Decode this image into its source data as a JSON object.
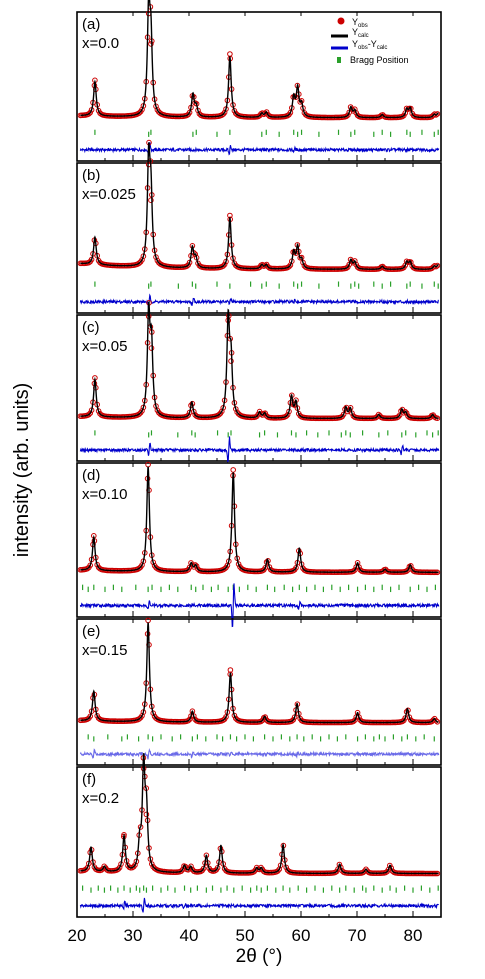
{
  "figure": {
    "ylabel": "intensity (arb. units)",
    "xlabel": "2θ (°)",
    "xlim": [
      20,
      85
    ],
    "xticks": [
      20,
      30,
      40,
      50,
      60,
      70,
      80
    ],
    "legend": {
      "items": [
        {
          "label": "Y",
          "sub": "obs"
        },
        {
          "label": "Y",
          "sub": "calc"
        },
        {
          "label": "Y",
          "sub": "obs",
          "mid": "-Y",
          "sub2": "calc"
        },
        {
          "label": "Bragg Position",
          "sub": ""
        }
      ],
      "placement": "top-right of panel (a)"
    },
    "colors": {
      "obs": "#cc0000",
      "calc": "#000000",
      "diff": "#0000cc",
      "diff_e": "#6a6ae8",
      "bragg": "#2aa02a"
    }
  },
  "chart_data": [
    {
      "type": "line",
      "panel": "(a)",
      "composition": "x=0.0",
      "peaks": [
        [
          23.2,
          0.34
        ],
        [
          32.8,
          1.0
        ],
        [
          33.2,
          0.7
        ],
        [
          40.7,
          0.22
        ],
        [
          41.3,
          0.1
        ],
        [
          47.3,
          0.6
        ],
        [
          53.0,
          0.04
        ],
        [
          53.8,
          0.05
        ],
        [
          58.7,
          0.19
        ],
        [
          59.4,
          0.28
        ],
        [
          60.1,
          0.12
        ],
        [
          68.9,
          0.1
        ],
        [
          69.6,
          0.07
        ],
        [
          74.5,
          0.03
        ],
        [
          78.9,
          0.08
        ],
        [
          79.5,
          0.09
        ],
        [
          83.8,
          0.03
        ],
        [
          84.5,
          0.04
        ]
      ],
      "baseline": 0.02,
      "noise_diff": 0.02,
      "diff_features": [
        [
          32.9,
          0.1
        ],
        [
          47.3,
          0.07
        ],
        [
          58.8,
          0.02
        ]
      ],
      "bragg": [
        23.2,
        32.8,
        33.2,
        40.7,
        41.3,
        45.0,
        47.3,
        53.0,
        53.8,
        56.1,
        58.7,
        59.4,
        60.1,
        63.2,
        66.7,
        68.9,
        69.6,
        73.0,
        74.5,
        76.0,
        78.9,
        79.5,
        81.6,
        83.8,
        84.5
      ]
    },
    {
      "type": "line",
      "panel": "(b)",
      "composition": "x=0.025",
      "peaks": [
        [
          23.2,
          0.27
        ],
        [
          32.8,
          1.0
        ],
        [
          33.2,
          0.65
        ],
        [
          40.6,
          0.2
        ],
        [
          41.2,
          0.1
        ],
        [
          47.3,
          0.5
        ],
        [
          53.0,
          0.04
        ],
        [
          53.8,
          0.04
        ],
        [
          58.7,
          0.16
        ],
        [
          59.4,
          0.21
        ],
        [
          60.1,
          0.08
        ],
        [
          68.9,
          0.09
        ],
        [
          69.6,
          0.07
        ],
        [
          74.5,
          0.03
        ],
        [
          78.9,
          0.07
        ],
        [
          79.5,
          0.07
        ],
        [
          83.8,
          0.03
        ],
        [
          84.5,
          0.04
        ]
      ],
      "baseline": 0.06,
      "noise_diff": 0.02,
      "diff_features": [
        [
          32.9,
          0.09
        ],
        [
          40.7,
          0.05
        ],
        [
          47.3,
          0.03
        ],
        [
          58.8,
          0.03
        ]
      ],
      "bragg": [
        23.2,
        32.8,
        33.2,
        38.1,
        40.6,
        41.2,
        45.0,
        47.3,
        51.0,
        53.0,
        53.8,
        56.1,
        58.7,
        59.4,
        60.1,
        63.2,
        66.7,
        68.9,
        69.6,
        70.3,
        73.0,
        74.5,
        76.0,
        78.9,
        79.5,
        81.6,
        83.8,
        84.5
      ]
    },
    {
      "type": "line",
      "panel": "(c)",
      "composition": "x=0.05",
      "peaks": [
        [
          23.2,
          0.38
        ],
        [
          32.8,
          1.0
        ],
        [
          33.3,
          0.68
        ],
        [
          40.5,
          0.16
        ],
        [
          47.0,
          0.96
        ],
        [
          47.5,
          0.55
        ],
        [
          52.6,
          0.06
        ],
        [
          53.5,
          0.05
        ],
        [
          58.3,
          0.22
        ],
        [
          59.1,
          0.16
        ],
        [
          68.0,
          0.11
        ],
        [
          68.8,
          0.1
        ],
        [
          73.9,
          0.04
        ],
        [
          78.0,
          0.09
        ],
        [
          78.7,
          0.06
        ],
        [
          83.5,
          0.04
        ]
      ],
      "baseline": 0.02,
      "noise_diff": 0.02,
      "diff_features": [
        [
          32.9,
          0.1
        ],
        [
          47.1,
          0.2
        ],
        [
          78.0,
          0.07
        ]
      ],
      "bragg": [
        23.2,
        32.8,
        33.3,
        38.0,
        40.5,
        41.1,
        45.1,
        47.0,
        47.5,
        52.6,
        53.5,
        55.8,
        58.3,
        59.1,
        61.0,
        63.0,
        65.0,
        67.2,
        68.0,
        68.8,
        71.0,
        73.9,
        75.5,
        78.0,
        78.7,
        80.5,
        82.5,
        83.5,
        84.5
      ]
    },
    {
      "type": "line",
      "panel": "(d)",
      "composition": "x=0.10",
      "peaks": [
        [
          23.0,
          0.32
        ],
        [
          32.7,
          1.0
        ],
        [
          40.4,
          0.08
        ],
        [
          41.2,
          0.06
        ],
        [
          47.9,
          0.95
        ],
        [
          54.0,
          0.12
        ],
        [
          59.7,
          0.23
        ],
        [
          70.1,
          0.09
        ],
        [
          75.0,
          0.03
        ],
        [
          79.5,
          0.07
        ]
      ],
      "baseline": 0.02,
      "noise_diff": 0.02,
      "diff_features": [
        [
          32.8,
          0.06
        ],
        [
          47.9,
          0.35
        ],
        [
          59.7,
          0.04
        ]
      ],
      "bragg": [
        21.0,
        22.0,
        23.0,
        25.0,
        26.5,
        28.0,
        30.5,
        32.7,
        33.4,
        35.0,
        36.5,
        38.0,
        40.4,
        41.2,
        42.5,
        44.0,
        45.2,
        47.0,
        47.9,
        49.0,
        50.5,
        52.0,
        54.0,
        55.3,
        57.0,
        58.5,
        59.7,
        61.0,
        62.5,
        64.0,
        65.5,
        67.0,
        68.5,
        70.1,
        71.5,
        73.0,
        74.5,
        76.0,
        77.5,
        79.5,
        81.0,
        82.5,
        84.0
      ]
    },
    {
      "type": "line",
      "panel": "(e)",
      "composition": "x=0.15",
      "peaks": [
        [
          23.0,
          0.3
        ],
        [
          32.7,
          1.0
        ],
        [
          40.6,
          0.11
        ],
        [
          47.4,
          0.5
        ],
        [
          53.5,
          0.06
        ],
        [
          59.3,
          0.19
        ],
        [
          70.1,
          0.1
        ],
        [
          79.0,
          0.14
        ],
        [
          83.8,
          0.04
        ]
      ],
      "baseline": 0.02,
      "noise_diff": 0.02,
      "diff_features": [
        [
          23.0,
          0.08
        ],
        [
          32.8,
          0.07
        ],
        [
          40.6,
          0.04
        ],
        [
          47.4,
          0.03
        ],
        [
          59.3,
          0.03
        ]
      ],
      "bragg": [
        22.0,
        23.0,
        25.5,
        28.0,
        29.0,
        31.0,
        32.7,
        33.5,
        35.0,
        37.0,
        38.5,
        40.6,
        41.5,
        43.0,
        45.0,
        46.0,
        47.4,
        48.5,
        50.0,
        51.5,
        53.5,
        55.0,
        56.5,
        58.0,
        59.3,
        60.5,
        62.0,
        63.5,
        65.0,
        66.5,
        68.0,
        70.1,
        71.5,
        73.0,
        74.0,
        75.0,
        76.5,
        78.0,
        79.0,
        80.5,
        82.0,
        83.8
      ]
    },
    {
      "type": "line",
      "panel": "(f)",
      "composition": "x=0.2",
      "peaks": [
        [
          22.5,
          0.24
        ],
        [
          24.9,
          0.05
        ],
        [
          28.4,
          0.35
        ],
        [
          31.2,
          0.26
        ],
        [
          31.9,
          1.0
        ],
        [
          32.4,
          0.55
        ],
        [
          39.2,
          0.07
        ],
        [
          40.3,
          0.06
        ],
        [
          43.1,
          0.17
        ],
        [
          45.7,
          0.27
        ],
        [
          52.1,
          0.05
        ],
        [
          52.9,
          0.05
        ],
        [
          56.8,
          0.28
        ],
        [
          66.9,
          0.09
        ],
        [
          71.6,
          0.04
        ],
        [
          75.9,
          0.08
        ]
      ],
      "baseline": 0.02,
      "noise_diff": 0.02,
      "diff_features": [
        [
          28.4,
          0.06
        ],
        [
          31.9,
          0.1
        ],
        [
          39.2,
          0.02
        ]
      ],
      "bragg": [
        21.0,
        22.5,
        23.8,
        24.9,
        26.0,
        27.3,
        28.4,
        29.5,
        30.6,
        31.2,
        31.9,
        32.4,
        33.5,
        35.0,
        36.2,
        37.5,
        39.2,
        40.3,
        41.5,
        43.1,
        44.2,
        45.7,
        46.8,
        48.0,
        49.5,
        51.0,
        52.1,
        52.9,
        54.0,
        55.5,
        56.8,
        58.0,
        59.5,
        61.0,
        62.5,
        64.0,
        65.5,
        66.9,
        68.0,
        69.5,
        71.0,
        71.6,
        73.0,
        74.5,
        75.9,
        77.0,
        78.5,
        80.0,
        81.5,
        83.0,
        84.5
      ]
    }
  ]
}
